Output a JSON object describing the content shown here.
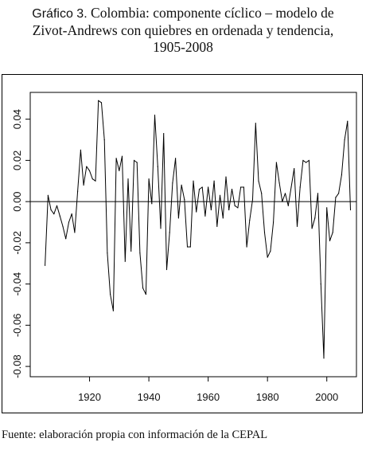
{
  "title": {
    "label": "Gráfico 3.",
    "line1_rest": "Colombia: componente cíclico – modelo de",
    "line2": "Zivot-Andrews con quiebres en ordenada y tendencia,",
    "line3": "1905-2008"
  },
  "source": "Fuente: elaboración propia con información de la CEPAL",
  "chart_data": {
    "type": "line",
    "xlim": [
      1900,
      2010
    ],
    "ylim": [
      -0.085,
      0.053
    ],
    "x_ticks": [
      1920,
      1940,
      1960,
      1980,
      2000
    ],
    "y_ticks": [
      0.04,
      0.02,
      0.0,
      -0.02,
      -0.04,
      -0.06,
      -0.08
    ],
    "y_tick_labels": [
      "0.04",
      "0.02",
      "0.00",
      "-0.02",
      "-0.04",
      "-0.06",
      "-0.08"
    ],
    "reference_line": 0.0,
    "grid": false,
    "line_color": "#000000",
    "x": [
      1905,
      1906,
      1907,
      1908,
      1909,
      1910,
      1911,
      1912,
      1913,
      1914,
      1915,
      1916,
      1917,
      1918,
      1919,
      1920,
      1921,
      1922,
      1923,
      1924,
      1925,
      1926,
      1927,
      1928,
      1929,
      1930,
      1931,
      1932,
      1933,
      1934,
      1935,
      1936,
      1937,
      1938,
      1939,
      1940,
      1941,
      1942,
      1943,
      1944,
      1945,
      1946,
      1947,
      1948,
      1949,
      1950,
      1951,
      1952,
      1953,
      1954,
      1955,
      1956,
      1957,
      1958,
      1959,
      1960,
      1961,
      1962,
      1963,
      1964,
      1965,
      1966,
      1967,
      1968,
      1969,
      1970,
      1971,
      1972,
      1973,
      1974,
      1975,
      1976,
      1977,
      1978,
      1979,
      1980,
      1981,
      1982,
      1983,
      1984,
      1985,
      1986,
      1987,
      1988,
      1989,
      1990,
      1991,
      1992,
      1993,
      1994,
      1995,
      1996,
      1997,
      1998,
      1999,
      2000,
      2001,
      2002,
      2003,
      2004,
      2005,
      2006,
      2007,
      2008
    ],
    "y": [
      -0.031,
      0.003,
      -0.004,
      -0.006,
      -0.002,
      -0.007,
      -0.012,
      -0.018,
      -0.01,
      -0.006,
      -0.015,
      0.005,
      0.025,
      0.008,
      0.017,
      0.015,
      0.011,
      0.01,
      0.049,
      0.048,
      0.03,
      -0.025,
      -0.045,
      -0.053,
      0.021,
      0.015,
      0.022,
      -0.029,
      0.011,
      -0.024,
      0.02,
      0.019,
      -0.025,
      -0.042,
      -0.045,
      0.011,
      -0.001,
      0.042,
      0.017,
      -0.013,
      0.033,
      -0.033,
      -0.015,
      0.009,
      0.021,
      -0.008,
      0.008,
      0.001,
      -0.022,
      -0.022,
      0.01,
      -0.005,
      0.006,
      0.007,
      -0.007,
      0.007,
      -0.004,
      0.01,
      -0.012,
      0.003,
      -0.008,
      0.012,
      -0.004,
      0.006,
      -0.002,
      -0.003,
      0.007,
      0.007,
      -0.022,
      -0.009,
      0.001,
      0.038,
      0.01,
      0.004,
      -0.015,
      -0.027,
      -0.024,
      -0.01,
      0.019,
      0.009,
      0.0,
      0.004,
      -0.002,
      0.007,
      0.016,
      -0.012,
      0.007,
      0.02,
      0.019,
      0.02,
      -0.013,
      -0.008,
      0.004,
      -0.04,
      -0.076,
      -0.003,
      -0.019,
      -0.015,
      0.002,
      0.004,
      0.013,
      0.03,
      0.039,
      -0.004
    ]
  }
}
